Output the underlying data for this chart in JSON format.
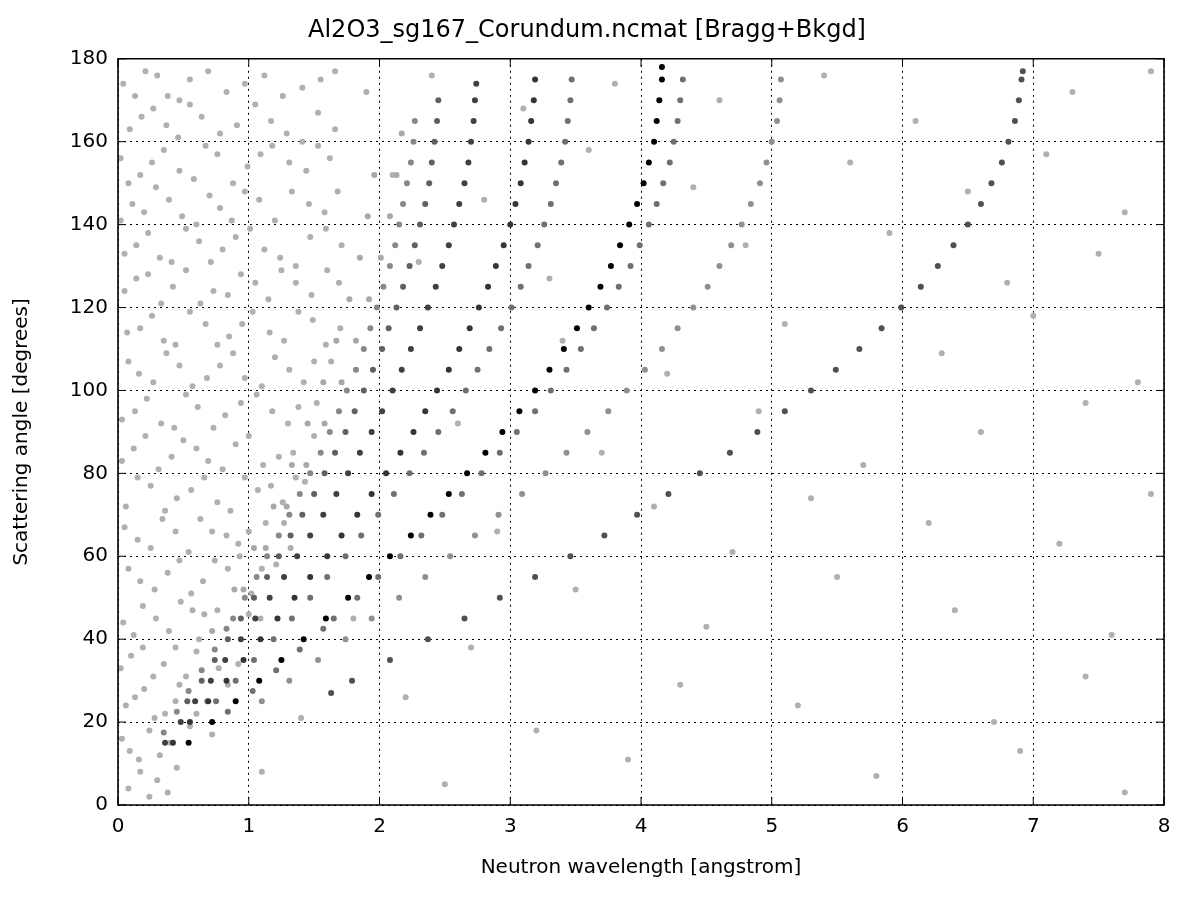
{
  "chart_data": {
    "type": "scatter",
    "title": "Al2O3_sg167_Corundum.ncmat [Bragg+Bkgd]",
    "xlabel": "Neutron wavelength [angstrom]",
    "ylabel": "Scattering angle [degrees]",
    "xlim": [
      0,
      8
    ],
    "ylim": [
      0,
      180
    ],
    "xticks": [
      0,
      1,
      2,
      3,
      4,
      5,
      6,
      7,
      8
    ],
    "yticks": [
      0,
      20,
      40,
      60,
      80,
      100,
      120,
      140,
      160,
      180
    ],
    "grid": true,
    "marker": "circle",
    "series": [
      {
        "color": "#b0b0b0",
        "x": [
          0.04,
          0.21,
          0.38,
          0.55,
          0.83,
          1.12,
          1.41,
          1.66,
          0.09,
          0.27,
          0.46,
          0.64,
          0.91,
          1.05,
          1.29,
          1.53,
          0.02,
          0.17,
          0.35,
          0.58,
          0.76,
          0.99,
          1.18,
          1.44,
          1.62,
          0.11,
          0.29,
          0.49,
          0.7,
          0.87,
          1.08,
          1.33,
          1.58,
          0.05,
          0.23,
          0.41,
          0.62,
          0.8,
          1.01,
          1.24,
          1.47,
          1.71,
          0.14,
          0.33,
          0.52,
          0.73,
          0.94,
          1.15,
          1.36,
          1.6,
          0.07,
          0.26,
          0.44,
          0.67,
          0.85,
          1.03,
          1.27,
          1.49,
          1.7,
          0.16,
          0.37,
          0.57,
          0.78,
          0.97,
          1.2,
          1.42,
          1.63,
          0.03,
          0.22,
          0.43,
          0.61,
          0.82,
          1.06,
          1.3,
          1.52,
          0.12,
          0.31,
          0.5,
          0.69,
          0.9,
          1.11,
          1.34,
          1.5,
          0.06,
          0.25,
          0.45,
          0.66,
          0.86,
          1.07,
          1.26,
          1.43,
          0.15,
          0.34,
          0.54,
          0.72,
          0.92,
          1.13,
          1.32,
          0.08,
          0.28,
          0.47,
          0.65,
          0.84,
          1.02,
          1.21,
          0.04,
          0.19,
          0.39,
          0.57,
          0.76,
          1,
          1.09,
          0.1,
          0.27,
          0.44,
          0.6,
          0.77,
          0.92,
          0.06,
          0.2,
          0.36,
          0.47,
          0.68,
          0.84,
          0.09,
          0.24,
          0.4,
          0.55,
          0.72,
          0.08,
          0.17,
          0.3,
          0.45,
          1.9,
          2.4,
          3.1,
          3.8,
          4.6,
          5.4,
          6.1,
          7.3,
          7.9,
          2.1,
          2.8,
          3.6,
          4.4,
          5.6,
          6.5,
          7.1,
          7.7,
          2.3,
          3.3,
          4.8,
          5.9,
          6.8,
          7.5,
          3.4,
          4.2,
          5.1,
          6.3,
          7,
          7.8,
          2.6,
          3.7,
          4.9,
          5.7,
          6.6,
          7.4,
          2.9,
          4.1,
          4.7,
          5.3,
          6.2,
          7.2,
          7.9,
          1.8,
          2.7,
          3.5,
          4.5,
          5.5,
          6.4,
          7.6,
          1.4,
          2.2,
          3.2,
          4.3,
          5.2,
          6.7,
          7.4,
          1.1,
          2.5,
          3.9,
          5.8,
          6.9,
          7.7,
          0.13,
          0.3,
          0.47,
          0.69,
          0.97,
          1.26,
          1.55,
          0.18,
          0.37,
          0.55,
          0.78,
          1.17,
          1.41,
          1.66,
          0.08,
          0.26,
          0.47,
          0.67,
          0.88,
          1.09,
          1.31,
          1.53,
          0.02,
          0.2,
          0.39,
          0.6,
          0.78,
          0.97,
          1.2,
          1.46,
          1.68,
          0.14,
          0.32,
          0.52,
          0.71,
          0.9,
          1.12,
          1.36,
          1.59,
          0.05,
          0.23,
          0.42,
          0.63,
          0.84,
          1.05,
          1.25,
          1.48,
          1.69,
          0.17,
          0.35,
          0.55,
          0.76,
          0.95,
          1.16,
          1.38,
          1.59,
          0.08,
          0.27,
          0.47,
          0.68,
          0.88,
          1.1,
          1.31,
          1.5,
          0.13,
          0.33,
          0.52,
          0.73,
          0.94,
          1.18,
          1.38,
          0.03,
          0.21,
          0.41,
          0.6,
          0.8,
          1,
          1.23,
          0.15,
          0.36,
          0.56,
          0.76,
          0.97,
          1.17,
          1.36,
          0.05,
          0.25,
          0.44,
          0.63,
          0.83,
          1,
          1.27,
          0.17,
          0.38,
          0.56,
          0.74,
          0.93,
          1.1,
          0.12,
          0.29,
          0.48,
          0.62,
          0.66,
          0.02,
          0.19,
          0.35,
          0.52,
          0.13,
          0.28,
          0.44,
          0.6,
          0.03,
          0.16,
          0.32,
          0.24,
          0.38
        ],
        "values": [
          174,
          177,
          171,
          175,
          172,
          176,
          173,
          177,
          163,
          168,
          161,
          166,
          164,
          169,
          162,
          167,
          156,
          152,
          158,
          151,
          157,
          154,
          159,
          153,
          156,
          145,
          149,
          142,
          147,
          141,
          146,
          148,
          143,
          133,
          138,
          131,
          136,
          134,
          139,
          132,
          137,
          135,
          127,
          121,
          129,
          124,
          128,
          122,
          126,
          129,
          114,
          118,
          111,
          116,
          113,
          119,
          112,
          117,
          115,
          104,
          109,
          101,
          106,
          103,
          108,
          102,
          107,
          93,
          98,
          91,
          96,
          94,
          99,
          92,
          97,
          86,
          81,
          88,
          83,
          87,
          82,
          85,
          89,
          72,
          77,
          74,
          79,
          71,
          76,
          73,
          78,
          64,
          69,
          61,
          66,
          63,
          68,
          62,
          57,
          52,
          59,
          54,
          57,
          51,
          58,
          44,
          48,
          42,
          47,
          47,
          46,
          45,
          36,
          31,
          38,
          37,
          33,
          34,
          24,
          28,
          22,
          29,
          25,
          29,
          13,
          18,
          15,
          19,
          17,
          4,
          8,
          6,
          9,
          172,
          176,
          168,
          174,
          170,
          176,
          165,
          172,
          177,
          152,
          146,
          158,
          149,
          155,
          148,
          157,
          143,
          131,
          127,
          135,
          138,
          126,
          133,
          112,
          104,
          116,
          109,
          118,
          102,
          92,
          85,
          95,
          82,
          90,
          97,
          66,
          72,
          61,
          74,
          68,
          63,
          75,
          45,
          38,
          52,
          43,
          55,
          47,
          41,
          21,
          26,
          18,
          29,
          24,
          20,
          31,
          8,
          5,
          11,
          7,
          13,
          3,
          171,
          176,
          170,
          177,
          174,
          171,
          175,
          166,
          164,
          169,
          162,
          165,
          160,
          163,
          150,
          155,
          153,
          159,
          150,
          157,
          155,
          159,
          141,
          143,
          146,
          140,
          144,
          148,
          141,
          145,
          148,
          135,
          132,
          139,
          131,
          137,
          134,
          130,
          139,
          124,
          128,
          125,
          121,
          123,
          126,
          129,
          123,
          126,
          115,
          112,
          119,
          111,
          116,
          114,
          119,
          111,
          107,
          102,
          106,
          103,
          109,
          101,
          105,
          107,
          95,
          92,
          99,
          91,
          97,
          95,
          96,
          83,
          89,
          84,
          86,
          81,
          89,
          84,
          79,
          71,
          76,
          73,
          79,
          77,
          79,
          67,
          62,
          66,
          69,
          65,
          66,
          68,
          54,
          56,
          51,
          59,
          60,
          57,
          41,
          45,
          49,
          40,
          46,
          33,
          38,
          34,
          31,
          26,
          21,
          25,
          22,
          16,
          11,
          12,
          2,
          3
        ]
      },
      {
        "color": "#a8a8a8",
        "x": [
          0.96,
          1.13,
          1.29,
          1.44,
          1.58,
          1.71,
          1.82,
          1.92,
          2.01,
          2.08,
          2.13,
          2.17
        ],
        "values": [
          52,
          62,
          72,
          82,
          92,
          102,
          112,
          122,
          132,
          142,
          152,
          162
        ]
      },
      {
        "color": "#a8a8a8",
        "x": [
          0.72,
          0.89,
          1.04,
          1.19,
          1.33,
          1.45,
          1.57,
          1.67,
          1.77,
          1.85,
          1.91,
          1.96
        ],
        "values": [
          42,
          52,
          62,
          72,
          82,
          92,
          102,
          112,
          122,
          132,
          142,
          152
        ]
      },
      {
        "color": "#888888",
        "x": [
          0.35,
          0.45,
          0.54,
          0.64,
          0.74,
          0.83,
          0.88,
          0.97,
          1.06,
          1.14,
          1.23,
          1.31,
          1.39,
          1.47,
          1.55,
          1.62,
          1.69,
          1.75,
          1.82,
          1.88,
          1.93,
          1.98,
          2.03,
          2.08,
          2.12,
          2.15,
          2.18,
          2.21,
          2.24,
          2.26,
          2.27
        ],
        "values": [
          17.5,
          22.5,
          27.5,
          32.5,
          37.5,
          42.5,
          45,
          50,
          55,
          60,
          65,
          70,
          75,
          80,
          85,
          90,
          95,
          100,
          105,
          110,
          115,
          120,
          125,
          130,
          135,
          140,
          145,
          150,
          155,
          160,
          165
        ]
      },
      {
        "color": "#606060",
        "x": [
          0.53,
          0.64,
          0.74,
          0.84,
          0.94,
          1.04,
          1.14,
          1.23,
          1.32,
          1.41,
          1.5,
          1.58,
          1.66,
          1.74,
          1.81,
          1.88,
          1.95,
          2.02,
          2.07,
          2.13,
          2.18,
          2.23,
          2.27,
          2.31,
          2.35,
          2.38,
          2.4,
          2.42,
          2.44,
          2.45
        ],
        "values": [
          25,
          30,
          35,
          40,
          45,
          50,
          55,
          60,
          65,
          70,
          75,
          80,
          85,
          90,
          95,
          100,
          105,
          110,
          115,
          120,
          125,
          130,
          135,
          140,
          145,
          150,
          155,
          160,
          165,
          170
        ]
      },
      {
        "color": "#404040",
        "x": [
          0.36,
          0.48,
          0.59,
          0.71,
          0.82,
          0.94,
          1.05,
          1.16,
          1.27,
          1.37,
          1.47,
          1.57,
          1.67,
          1.76,
          1.85,
          1.94,
          2.02,
          2.1,
          2.17,
          2.24,
          2.31,
          2.37,
          2.43,
          2.48,
          2.53,
          2.57,
          2.61,
          2.65,
          2.68,
          2.7,
          2.72,
          2.73,
          2.74
        ],
        "values": [
          15,
          20,
          25,
          30,
          35,
          40,
          45,
          50,
          55,
          60,
          65,
          70,
          75,
          80,
          85,
          90,
          95,
          100,
          105,
          110,
          115,
          120,
          125,
          130,
          135,
          140,
          145,
          150,
          155,
          160,
          165,
          170,
          174
        ]
      },
      {
        "color": "#353535",
        "x": [
          0.42,
          0.55,
          0.69,
          0.83,
          0.96,
          1.09,
          1.22,
          1.35,
          1.47,
          1.6,
          1.71,
          1.83,
          1.94,
          2.05,
          2.16,
          2.26,
          2.35,
          2.44,
          2.53,
          2.61,
          2.69,
          2.76,
          2.83,
          2.89,
          2.95,
          3,
          3.04,
          3.08,
          3.11,
          3.14,
          3.16,
          3.18,
          3.19
        ],
        "values": [
          15,
          20,
          25,
          30,
          35,
          40,
          45,
          50,
          55,
          60,
          65,
          70,
          75,
          80,
          85,
          90,
          95,
          100,
          105,
          110,
          115,
          120,
          125,
          130,
          135,
          140,
          145,
          150,
          155,
          160,
          165,
          170,
          175
        ]
      },
      {
        "color": "#707070",
        "x": [
          0.75,
          0.9,
          1.04,
          1.19,
          1.33,
          1.47,
          1.6,
          1.74,
          1.86,
          1.99,
          2.11,
          2.23,
          2.34,
          2.45,
          2.56,
          2.66,
          2.75,
          2.84,
          2.93,
          3.01,
          3.08,
          3.14,
          3.21,
          3.26,
          3.31,
          3.35,
          3.39,
          3.42,
          3.44,
          3.46,
          3.47
        ],
        "values": [
          25,
          30,
          35,
          40,
          45,
          50,
          55,
          60,
          65,
          70,
          75,
          80,
          85,
          90,
          95,
          100,
          105,
          110,
          115,
          120,
          125,
          130,
          135,
          140,
          145,
          150,
          155,
          160,
          165,
          170,
          175
        ]
      },
      {
        "color": "#707070",
        "x": [
          0.84,
          1.03,
          1.21,
          1.39,
          1.57,
          1.65,
          1.83,
          1.99,
          2.16,
          2.32,
          2.48,
          2.63,
          2.78,
          2.92,
          3.05,
          3.19,
          3.31,
          3.43,
          3.54,
          3.64,
          3.74,
          3.83,
          3.92,
          3.99,
          4.06,
          4.12,
          4.17,
          4.22,
          4.25,
          4.28,
          4.3,
          4.32
        ],
        "values": [
          22.5,
          27.5,
          32.5,
          37.5,
          42.5,
          45,
          50,
          55,
          60,
          65,
          70,
          75,
          80,
          85,
          90,
          95,
          100,
          105,
          110,
          115,
          120,
          125,
          130,
          135,
          140,
          145,
          150,
          155,
          160,
          165,
          170,
          175
        ]
      },
      {
        "color": "#000000",
        "x": [
          0.54,
          0.72,
          0.9,
          1.08,
          1.25,
          1.42,
          1.59,
          1.76,
          1.92,
          2.08,
          2.24,
          2.39,
          2.53,
          2.67,
          2.81,
          2.94,
          3.07,
          3.19,
          3.3,
          3.41,
          3.51,
          3.6,
          3.69,
          3.77,
          3.84,
          3.91,
          3.97,
          4.02,
          4.06,
          4.1,
          4.12,
          4.14,
          4.16,
          4.16
        ],
        "values": [
          15,
          20,
          25,
          30,
          35,
          40,
          45,
          50,
          55,
          60,
          65,
          70,
          75,
          80,
          85,
          90,
          95,
          100,
          105,
          110,
          115,
          120,
          125,
          130,
          135,
          140,
          145,
          150,
          155,
          160,
          165,
          170,
          175,
          178
        ]
      },
      {
        "color": "#909090",
        "x": [
          1.1,
          1.31,
          1.53,
          1.74,
          1.94,
          2.15,
          2.35,
          2.54,
          2.73,
          2.91,
          3.09,
          3.27,
          3.43,
          3.59,
          3.75,
          3.89,
          4.03,
          4.16,
          4.28,
          4.4,
          4.51,
          4.6,
          4.69,
          4.77,
          4.84,
          4.91,
          4.96,
          5,
          5.04,
          5.06,
          5.07
        ],
        "values": [
          25,
          30,
          35,
          40,
          45,
          50,
          55,
          60,
          65,
          70,
          75,
          80,
          85,
          90,
          95,
          100,
          105,
          110,
          115,
          120,
          125,
          130,
          135,
          140,
          145,
          150,
          155,
          160,
          165,
          170,
          175
        ]
      },
      {
        "color": "#505050",
        "x": [
          1.63,
          1.79,
          2.08,
          2.37,
          2.65,
          2.92,
          3.19,
          3.46,
          3.72,
          3.97,
          4.21,
          4.45,
          4.68,
          4.89,
          5.1,
          5.3,
          5.49,
          5.67,
          5.84,
          5.99,
          6.14,
          6.27,
          6.39,
          6.5,
          6.6,
          6.68,
          6.76,
          6.81,
          6.86,
          6.89,
          6.91,
          6.92
        ],
        "values": [
          27,
          30,
          35,
          40,
          45,
          50,
          55,
          60,
          65,
          70,
          75,
          80,
          85,
          90,
          95,
          100,
          105,
          110,
          115,
          120,
          125,
          130,
          135,
          140,
          145,
          150,
          155,
          160,
          165,
          170,
          175,
          177
        ]
      }
    ]
  }
}
